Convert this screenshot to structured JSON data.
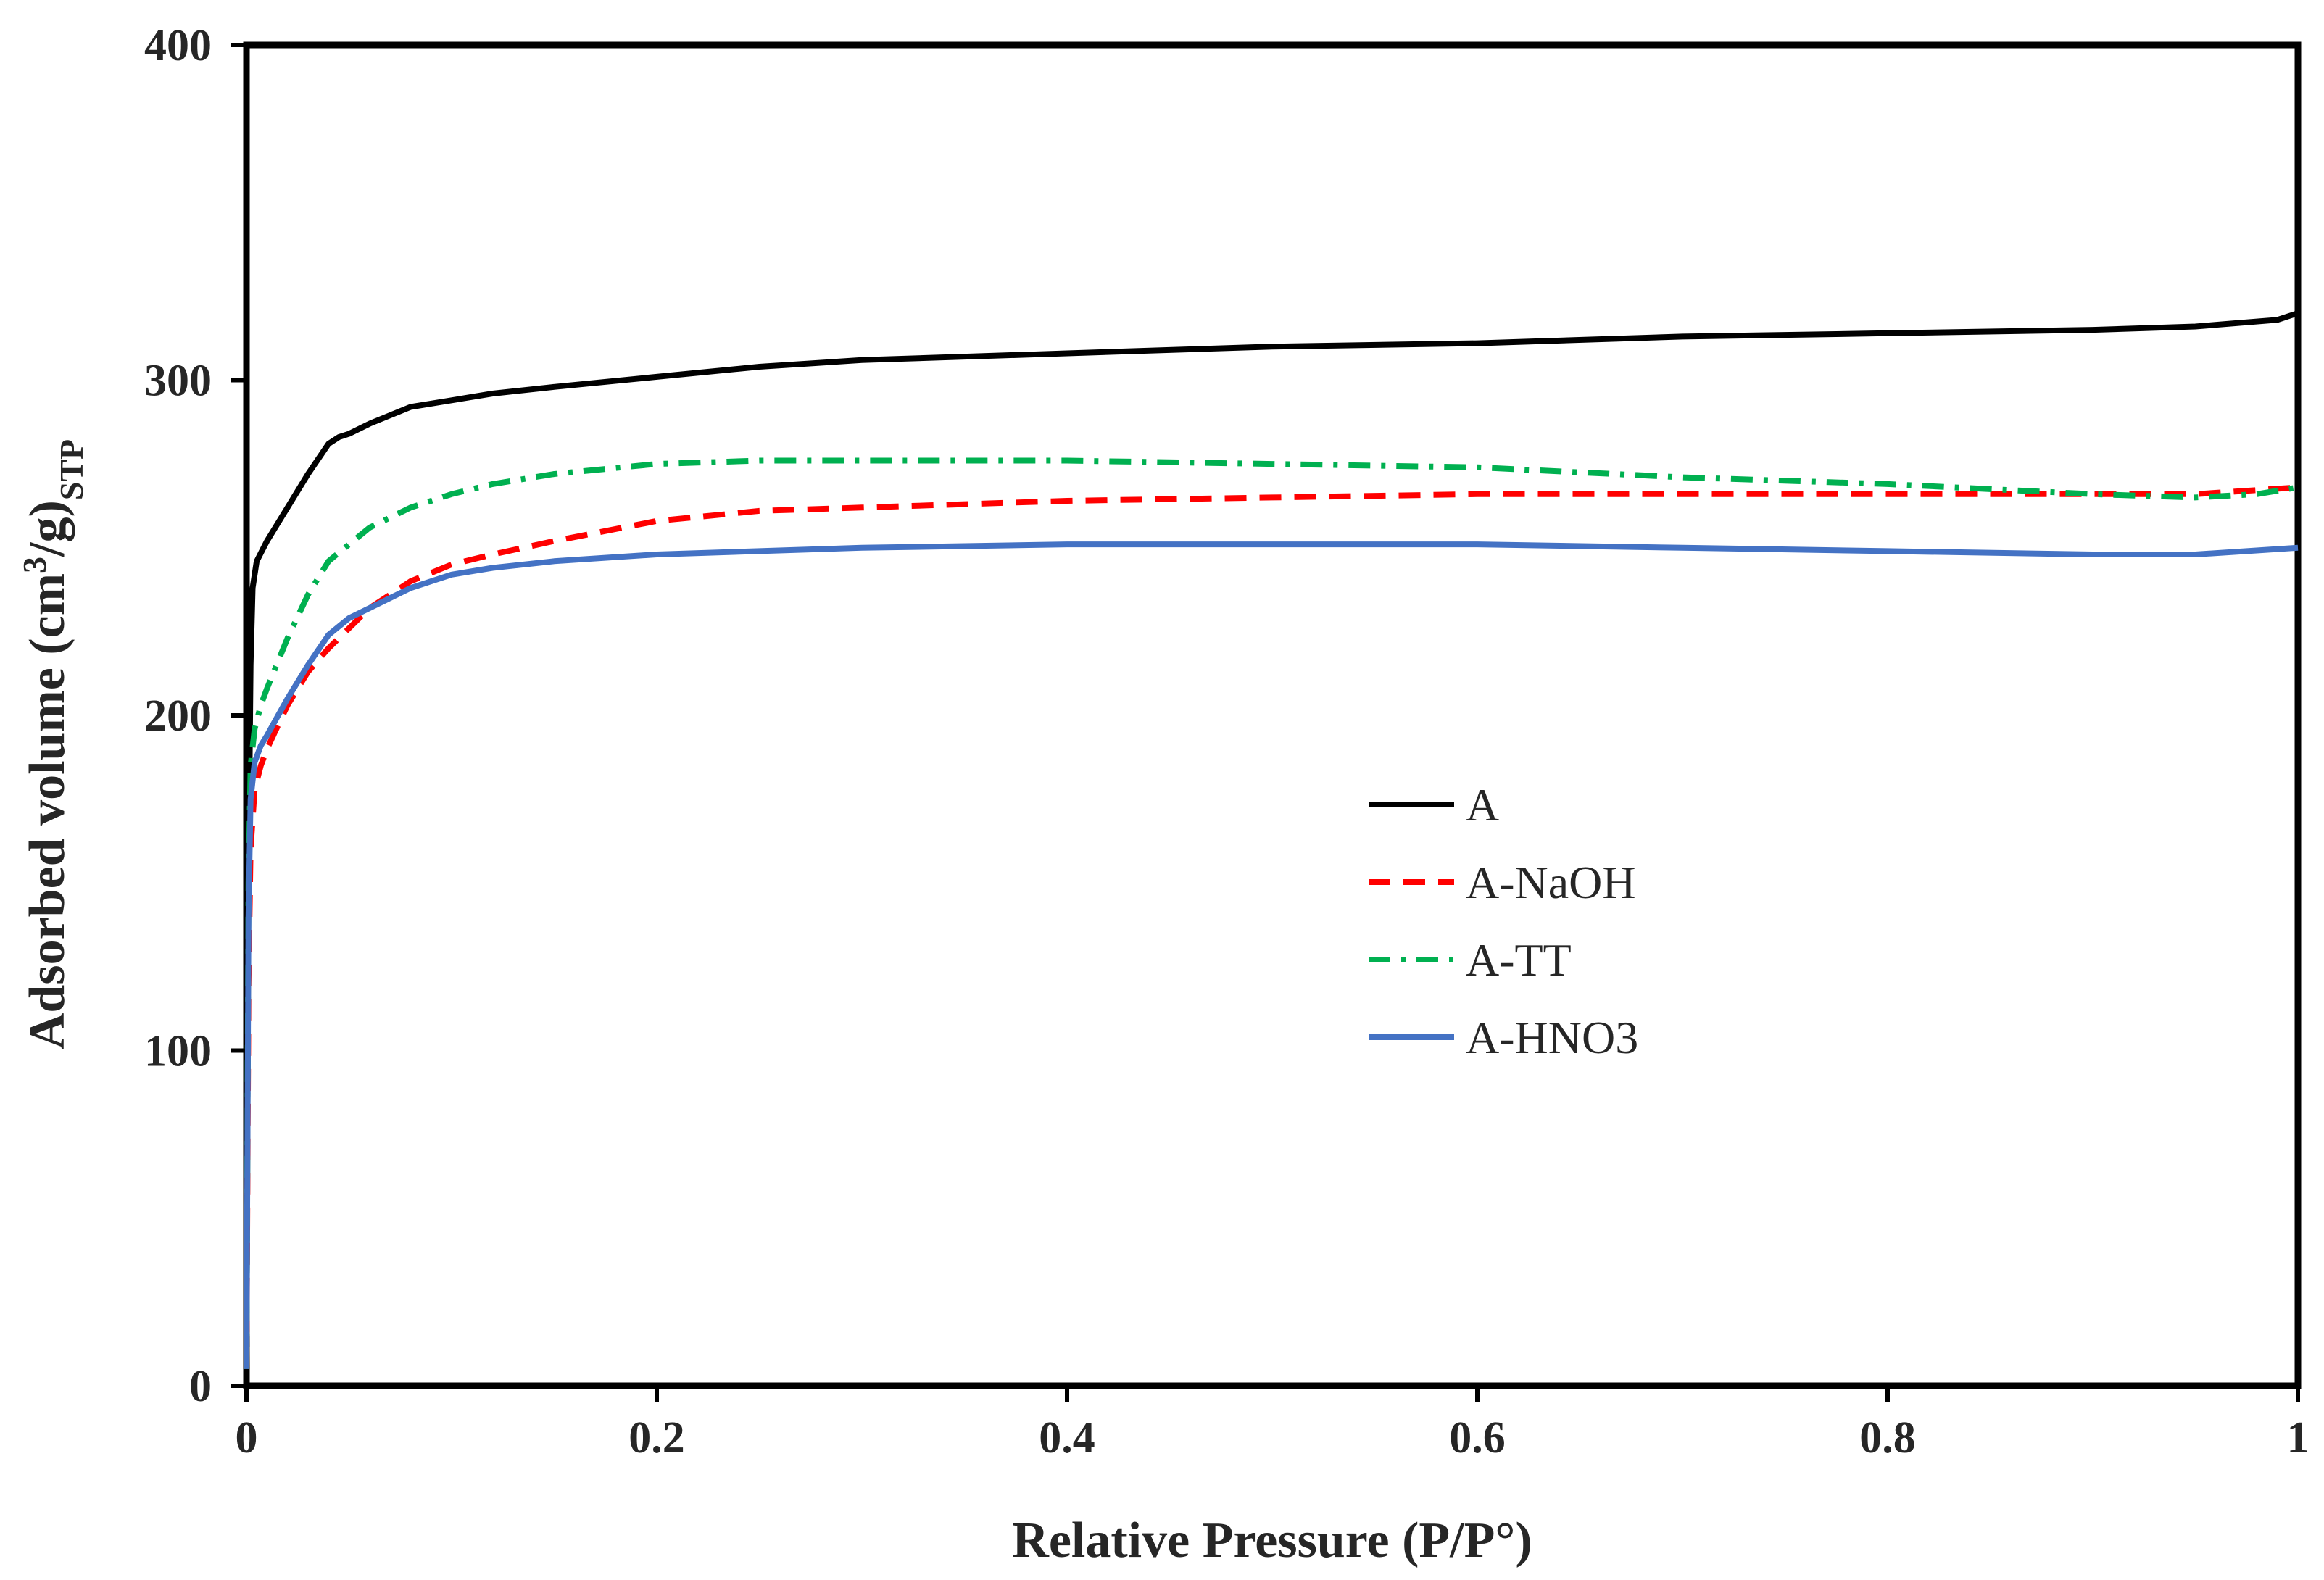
{
  "chart_data": {
    "type": "line",
    "title": "",
    "xlabel": "Relative Pressure (P/P°)",
    "ylabel": {
      "main": "Adsorbed volume (cm",
      "sup": "3",
      "mid": "/g)",
      "sub": "STP"
    },
    "xlim": [
      0,
      1
    ],
    "ylim": [
      0,
      400
    ],
    "x_ticks": [
      0,
      0.2,
      0.4,
      0.6,
      0.8,
      1
    ],
    "x_tick_labels": [
      "0",
      "0.2",
      "0.4",
      "0.6",
      "0.8",
      "1"
    ],
    "y_ticks": [
      0,
      100,
      200,
      300,
      400
    ],
    "y_tick_labels": [
      "0",
      "100",
      "200",
      "300",
      "400"
    ],
    "grid": false,
    "legend_position": "center-right",
    "series": [
      {
        "name": "A",
        "color": "#000000",
        "style": "solid",
        "x": [
          0.0,
          0.001,
          0.002,
          0.003,
          0.005,
          0.01,
          0.02,
          0.03,
          0.04,
          0.045,
          0.05,
          0.06,
          0.08,
          0.1,
          0.12,
          0.15,
          0.2,
          0.25,
          0.3,
          0.4,
          0.5,
          0.6,
          0.7,
          0.8,
          0.9,
          0.95,
          0.97,
          0.99,
          1.0
        ],
        "values": [
          5,
          150,
          215,
          238,
          246,
          252,
          262,
          272,
          281,
          283,
          284,
          287,
          292,
          294,
          296,
          298,
          301,
          304,
          306,
          308,
          310,
          311,
          313,
          314,
          315,
          316,
          317,
          318,
          320
        ]
      },
      {
        "name": "A-NaOH",
        "color": "#ff0000",
        "style": "dashed",
        "x": [
          0.0,
          0.001,
          0.002,
          0.004,
          0.007,
          0.01,
          0.02,
          0.03,
          0.04,
          0.05,
          0.06,
          0.08,
          0.1,
          0.12,
          0.15,
          0.2,
          0.25,
          0.3,
          0.4,
          0.5,
          0.6,
          0.7,
          0.8,
          0.9,
          0.95,
          1.0
        ],
        "values": [
          5,
          120,
          160,
          178,
          185,
          190,
          203,
          213,
          220,
          226,
          232,
          240,
          245,
          248,
          252,
          258,
          261,
          262,
          264,
          265,
          266,
          266,
          266,
          266,
          266,
          268
        ]
      },
      {
        "name": "A-TT",
        "color": "#00b050",
        "style": "dashdot",
        "x": [
          0.0,
          0.001,
          0.002,
          0.004,
          0.007,
          0.01,
          0.02,
          0.03,
          0.04,
          0.05,
          0.06,
          0.08,
          0.1,
          0.12,
          0.15,
          0.2,
          0.25,
          0.3,
          0.4,
          0.5,
          0.6,
          0.7,
          0.8,
          0.9,
          0.95,
          0.98,
          1.0
        ],
        "values": [
          5,
          150,
          185,
          196,
          203,
          208,
          223,
          236,
          246,
          251,
          256,
          262,
          266,
          269,
          272,
          275,
          276,
          276,
          276,
          275,
          274,
          271,
          269,
          266,
          265,
          266,
          268
        ]
      },
      {
        "name": "A-HNO3",
        "color": "#4472c4",
        "style": "solid",
        "x": [
          0.0,
          0.001,
          0.002,
          0.004,
          0.007,
          0.01,
          0.02,
          0.03,
          0.04,
          0.05,
          0.06,
          0.08,
          0.1,
          0.12,
          0.15,
          0.2,
          0.25,
          0.3,
          0.4,
          0.5,
          0.6,
          0.7,
          0.8,
          0.9,
          0.95,
          1.0
        ],
        "values": [
          5,
          140,
          175,
          186,
          191,
          194,
          205,
          215,
          224,
          229,
          232,
          238,
          242,
          244,
          246,
          248,
          249,
          250,
          251,
          251,
          251,
          250,
          249,
          248,
          248,
          250
        ]
      }
    ]
  }
}
